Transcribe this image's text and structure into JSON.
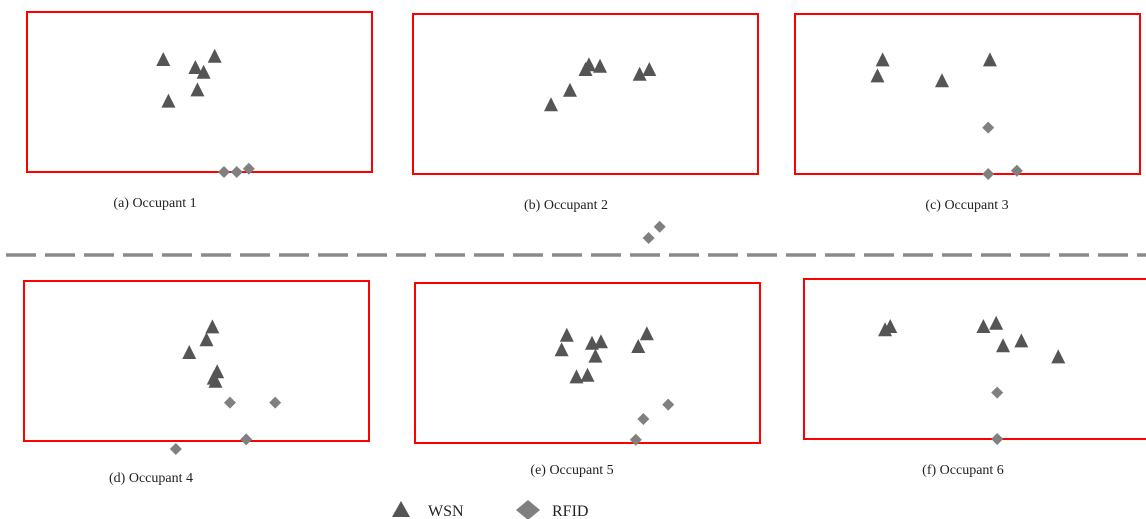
{
  "chart_data": {
    "type": "scatter",
    "legend": {
      "position": "bottom-center",
      "entries": [
        {
          "name": "WSN",
          "marker": "triangle",
          "color": "#555555"
        },
        {
          "name": "RFID",
          "marker": "diamond",
          "color": "#808080"
        }
      ]
    },
    "colors": {
      "frame": "#ff0000",
      "wsn": "#555555",
      "rfid": "#808080",
      "divider": "#8a8a8a"
    },
    "panels": [
      {
        "caption": "(a) Occupant 1",
        "WSN": [
          [
            0.395,
            0.3
          ],
          [
            0.488,
            0.35
          ],
          [
            0.544,
            0.28
          ],
          [
            0.512,
            0.38
          ],
          [
            0.494,
            0.49
          ],
          [
            0.41,
            0.56
          ]
        ],
        "RFID": [
          [
            0.571,
            1.0
          ],
          [
            0.608,
            1.0
          ],
          [
            0.643,
            0.98
          ]
        ]
      },
      {
        "caption": "(b) Occupant 2",
        "WSN": [
          [
            0.542,
            0.33
          ],
          [
            0.51,
            0.32
          ],
          [
            0.5,
            0.35
          ],
          [
            0.455,
            0.48
          ],
          [
            0.4,
            0.57
          ],
          [
            0.657,
            0.38
          ],
          [
            0.685,
            0.35
          ]
        ],
        "RFID": [
          [
            0.683,
            1.4
          ],
          [
            0.715,
            1.33
          ]
        ]
      },
      {
        "caption": "(c) Occupant 3",
        "WSN": [
          [
            0.254,
            0.29
          ],
          [
            0.239,
            0.39
          ],
          [
            0.565,
            0.29
          ],
          [
            0.426,
            0.42
          ]
        ],
        "RFID": [
          [
            0.56,
            0.71
          ],
          [
            0.56,
            1.0
          ],
          [
            0.643,
            0.98
          ]
        ]
      },
      {
        "caption": "(d) Occupant 4",
        "WSN": [
          [
            0.546,
            0.29
          ],
          [
            0.529,
            0.37
          ],
          [
            0.479,
            0.45
          ],
          [
            0.56,
            0.57
          ],
          [
            0.55,
            0.61
          ],
          [
            0.555,
            0.63
          ]
        ],
        "RFID": [
          [
            0.597,
            0.76
          ],
          [
            0.728,
            0.76
          ],
          [
            0.644,
            0.99
          ],
          [
            0.44,
            1.05
          ]
        ]
      },
      {
        "caption": "(e) Occupant 5",
        "WSN": [
          [
            0.44,
            0.33
          ],
          [
            0.539,
            0.37
          ],
          [
            0.513,
            0.38
          ],
          [
            0.425,
            0.42
          ],
          [
            0.523,
            0.46
          ],
          [
            0.5,
            0.58
          ],
          [
            0.468,
            0.59
          ],
          [
            0.647,
            0.4
          ],
          [
            0.672,
            0.32
          ]
        ],
        "RFID": [
          [
            0.734,
            0.76
          ],
          [
            0.662,
            0.85
          ],
          [
            0.64,
            0.98
          ]
        ]
      },
      {
        "caption": "(f) Occupant 6",
        "WSN": [
          [
            0.235,
            0.32
          ],
          [
            0.25,
            0.3
          ],
          [
            0.52,
            0.3
          ],
          [
            0.557,
            0.28
          ],
          [
            0.577,
            0.42
          ],
          [
            0.63,
            0.39
          ],
          [
            0.737,
            0.49
          ]
        ],
        "RFID": [
          [
            0.56,
            0.71
          ],
          [
            0.56,
            1.0
          ]
        ]
      }
    ]
  }
}
